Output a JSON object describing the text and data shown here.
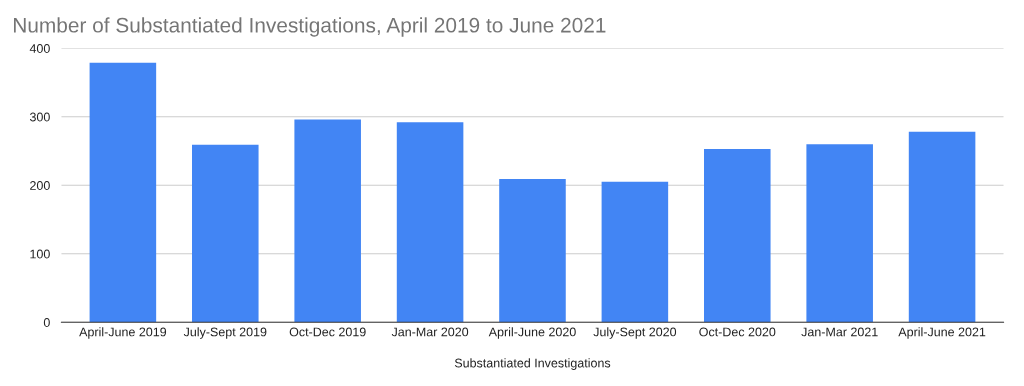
{
  "chart_data": {
    "type": "bar",
    "title": "Number of Substantiated Investigations, April 2019 to June 2021",
    "xlabel": "Substantiated Investigations",
    "categories": [
      "April-June 2019",
      "July-Sept 2019",
      "Oct-Dec 2019",
      "Jan-Mar 2020",
      "April-June 2020",
      "July-Sept 2020",
      "Oct-Dec 2020",
      "Jan-Mar 2021",
      "April-June 2021"
    ],
    "values": [
      379,
      259,
      296,
      292,
      209,
      205,
      253,
      260,
      278
    ],
    "color": "#4285f4",
    "ylim": [
      0,
      400
    ],
    "yticks": [
      0,
      100,
      200,
      300,
      400
    ],
    "grid": "y"
  }
}
